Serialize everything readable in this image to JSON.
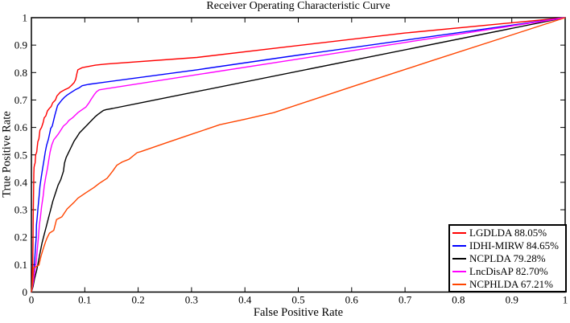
{
  "chart_data": {
    "type": "line",
    "title": "Receiver Operating Characteristic Curve",
    "xlabel": "False Positive Rate",
    "ylabel": "True Positive Rate",
    "xlim": [
      0,
      1
    ],
    "ylim": [
      0,
      1
    ],
    "grid": false,
    "axes_box": true,
    "legend_position": "lower right",
    "axis_color": "#000000",
    "background_color": "#ffffff",
    "xticks": {
      "values": [
        0,
        0.1,
        0.2,
        0.3,
        0.4,
        0.5,
        0.6,
        0.7,
        0.8,
        0.9,
        1
      ],
      "labels": [
        "0",
        "0.1",
        "0.2",
        "0.3",
        "0.4",
        "0.5",
        "0.6",
        "0.7",
        "0.8",
        "0.9",
        "1"
      ]
    },
    "yticks": {
      "values": [
        0,
        0.1,
        0.2,
        0.3,
        0.4,
        0.5,
        0.6,
        0.7,
        0.8,
        0.9,
        1
      ],
      "labels": [
        "0",
        "0.1",
        "0.2",
        "0.3",
        "0.4",
        "0.5",
        "0.6",
        "0.7",
        "0.8",
        "0.9",
        "1"
      ]
    },
    "series": [
      {
        "name": "LGDLDA",
        "auc": "88.05%",
        "label": "LGDLDA 88.05%",
        "color": "#ff0000",
        "points": [
          [
            0,
            0
          ],
          [
            0.001,
            0.02
          ],
          [
            0.002,
            0.08
          ],
          [
            0.0025,
            0.1
          ],
          [
            0.003,
            0.18
          ],
          [
            0.0035,
            0.28
          ],
          [
            0.004,
            0.36
          ],
          [
            0.0045,
            0.43
          ],
          [
            0.005,
            0.455
          ],
          [
            0.006,
            0.465
          ],
          [
            0.007,
            0.47
          ],
          [
            0.008,
            0.5
          ],
          [
            0.01,
            0.51
          ],
          [
            0.011,
            0.53
          ],
          [
            0.012,
            0.548
          ],
          [
            0.014,
            0.558
          ],
          [
            0.016,
            0.59
          ],
          [
            0.019,
            0.6
          ],
          [
            0.022,
            0.618
          ],
          [
            0.024,
            0.635
          ],
          [
            0.027,
            0.642
          ],
          [
            0.03,
            0.66
          ],
          [
            0.034,
            0.67
          ],
          [
            0.037,
            0.676
          ],
          [
            0.04,
            0.69
          ],
          [
            0.045,
            0.7
          ],
          [
            0.048,
            0.715
          ],
          [
            0.054,
            0.728
          ],
          [
            0.062,
            0.737
          ],
          [
            0.07,
            0.744
          ],
          [
            0.075,
            0.753
          ],
          [
            0.08,
            0.763
          ],
          [
            0.083,
            0.775
          ],
          [
            0.085,
            0.795
          ],
          [
            0.087,
            0.81
          ],
          [
            0.095,
            0.818
          ],
          [
            0.12,
            0.827
          ],
          [
            0.14,
            0.831
          ],
          [
            0.31,
            0.855
          ],
          [
            0.48,
            0.894
          ],
          [
            0.7,
            0.944
          ],
          [
            1,
            1
          ]
        ]
      },
      {
        "name": "IDHI-MIRW",
        "auc": "84.65%",
        "label": "IDHI-MIRW 84.65%",
        "color": "#0000ff",
        "points": [
          [
            0,
            0
          ],
          [
            0.002,
            0.03
          ],
          [
            0.003,
            0.05
          ],
          [
            0.004,
            0.07
          ],
          [
            0.005,
            0.09
          ],
          [
            0.006,
            0.11
          ],
          [
            0.0075,
            0.16
          ],
          [
            0.009,
            0.2
          ],
          [
            0.0095,
            0.245
          ],
          [
            0.011,
            0.275
          ],
          [
            0.0125,
            0.31
          ],
          [
            0.0145,
            0.35
          ],
          [
            0.016,
            0.385
          ],
          [
            0.0185,
            0.42
          ],
          [
            0.021,
            0.45
          ],
          [
            0.0235,
            0.48
          ],
          [
            0.026,
            0.51
          ],
          [
            0.0285,
            0.535
          ],
          [
            0.032,
            0.558
          ],
          [
            0.035,
            0.585
          ],
          [
            0.036,
            0.596
          ],
          [
            0.039,
            0.605
          ],
          [
            0.044,
            0.645
          ],
          [
            0.049,
            0.68
          ],
          [
            0.053,
            0.69
          ],
          [
            0.057,
            0.7
          ],
          [
            0.062,
            0.71
          ],
          [
            0.067,
            0.718
          ],
          [
            0.074,
            0.727
          ],
          [
            0.082,
            0.737
          ],
          [
            0.09,
            0.745
          ],
          [
            0.095,
            0.752
          ],
          [
            0.102,
            0.755
          ],
          [
            0.107,
            0.757
          ],
          [
            0.31,
            0.81
          ],
          [
            0.48,
            0.858
          ],
          [
            1,
            1
          ]
        ]
      },
      {
        "name": "NCPLDA",
        "auc": "79.28%",
        "label": "NCPLDA 79.28%",
        "color": "#000000",
        "points": [
          [
            0,
            0
          ],
          [
            0.003,
            0.02
          ],
          [
            0.006,
            0.05
          ],
          [
            0.01,
            0.08
          ],
          [
            0.012,
            0.1
          ],
          [
            0.015,
            0.13
          ],
          [
            0.018,
            0.16
          ],
          [
            0.02,
            0.18
          ],
          [
            0.024,
            0.21
          ],
          [
            0.028,
            0.24
          ],
          [
            0.032,
            0.27
          ],
          [
            0.036,
            0.3
          ],
          [
            0.04,
            0.33
          ],
          [
            0.045,
            0.36
          ],
          [
            0.05,
            0.39
          ],
          [
            0.055,
            0.41
          ],
          [
            0.06,
            0.44
          ],
          [
            0.062,
            0.47
          ],
          [
            0.065,
            0.49
          ],
          [
            0.07,
            0.51
          ],
          [
            0.075,
            0.53
          ],
          [
            0.08,
            0.55
          ],
          [
            0.085,
            0.565
          ],
          [
            0.09,
            0.58
          ],
          [
            0.095,
            0.59
          ],
          [
            0.1,
            0.6
          ],
          [
            0.105,
            0.61
          ],
          [
            0.11,
            0.62
          ],
          [
            0.115,
            0.63
          ],
          [
            0.12,
            0.64
          ],
          [
            0.125,
            0.648
          ],
          [
            0.13,
            0.655
          ],
          [
            0.135,
            0.662
          ],
          [
            0.14,
            0.665
          ],
          [
            0.152,
            0.669
          ],
          [
            1,
            1
          ]
        ]
      },
      {
        "name": "LncDisAP",
        "auc": "82.70%",
        "label": "LncDisAP 82.70%",
        "color": "#ff00ff",
        "points": [
          [
            0,
            0
          ],
          [
            0.003,
            0.03
          ],
          [
            0.006,
            0.07
          ],
          [
            0.009,
            0.11
          ],
          [
            0.011,
            0.155
          ],
          [
            0.013,
            0.195
          ],
          [
            0.015,
            0.245
          ],
          [
            0.017,
            0.275
          ],
          [
            0.019,
            0.31
          ],
          [
            0.022,
            0.35
          ],
          [
            0.024,
            0.385
          ],
          [
            0.027,
            0.42
          ],
          [
            0.03,
            0.45
          ],
          [
            0.0325,
            0.48
          ],
          [
            0.035,
            0.51
          ],
          [
            0.038,
            0.535
          ],
          [
            0.042,
            0.555
          ],
          [
            0.046,
            0.565
          ],
          [
            0.05,
            0.575
          ],
          [
            0.055,
            0.59
          ],
          [
            0.06,
            0.605
          ],
          [
            0.066,
            0.615
          ],
          [
            0.07,
            0.625
          ],
          [
            0.077,
            0.635
          ],
          [
            0.087,
            0.654
          ],
          [
            0.095,
            0.665
          ],
          [
            0.102,
            0.674
          ],
          [
            0.108,
            0.69
          ],
          [
            0.112,
            0.703
          ],
          [
            0.118,
            0.72
          ],
          [
            0.122,
            0.73
          ],
          [
            0.127,
            0.737
          ],
          [
            1,
            1
          ]
        ]
      },
      {
        "name": "NCPHLDA",
        "auc": "67.21%",
        "label": "NCPHLDA 67.21%",
        "color": "#ff4500",
        "points": [
          [
            0,
            0
          ],
          [
            0.002,
            0.03
          ],
          [
            0.003,
            0.06
          ],
          [
            0.004,
            0.088
          ],
          [
            0.014,
            0.098
          ],
          [
            0.018,
            0.13
          ],
          [
            0.022,
            0.157
          ],
          [
            0.027,
            0.186
          ],
          [
            0.03,
            0.2
          ],
          [
            0.034,
            0.215
          ],
          [
            0.042,
            0.225
          ],
          [
            0.047,
            0.264
          ],
          [
            0.057,
            0.274
          ],
          [
            0.067,
            0.303
          ],
          [
            0.08,
            0.327
          ],
          [
            0.087,
            0.342
          ],
          [
            0.102,
            0.362
          ],
          [
            0.117,
            0.381
          ],
          [
            0.127,
            0.396
          ],
          [
            0.142,
            0.415
          ],
          [
            0.152,
            0.44
          ],
          [
            0.16,
            0.462
          ],
          [
            0.17,
            0.474
          ],
          [
            0.183,
            0.484
          ],
          [
            0.198,
            0.508
          ],
          [
            0.205,
            0.512
          ],
          [
            0.253,
            0.544
          ],
          [
            0.3,
            0.575
          ],
          [
            0.353,
            0.61
          ],
          [
            0.4,
            0.63
          ],
          [
            0.454,
            0.654
          ],
          [
            0.6,
            0.748
          ],
          [
            0.75,
            0.843
          ],
          [
            0.9,
            0.937
          ],
          [
            1,
            1
          ]
        ]
      }
    ]
  }
}
